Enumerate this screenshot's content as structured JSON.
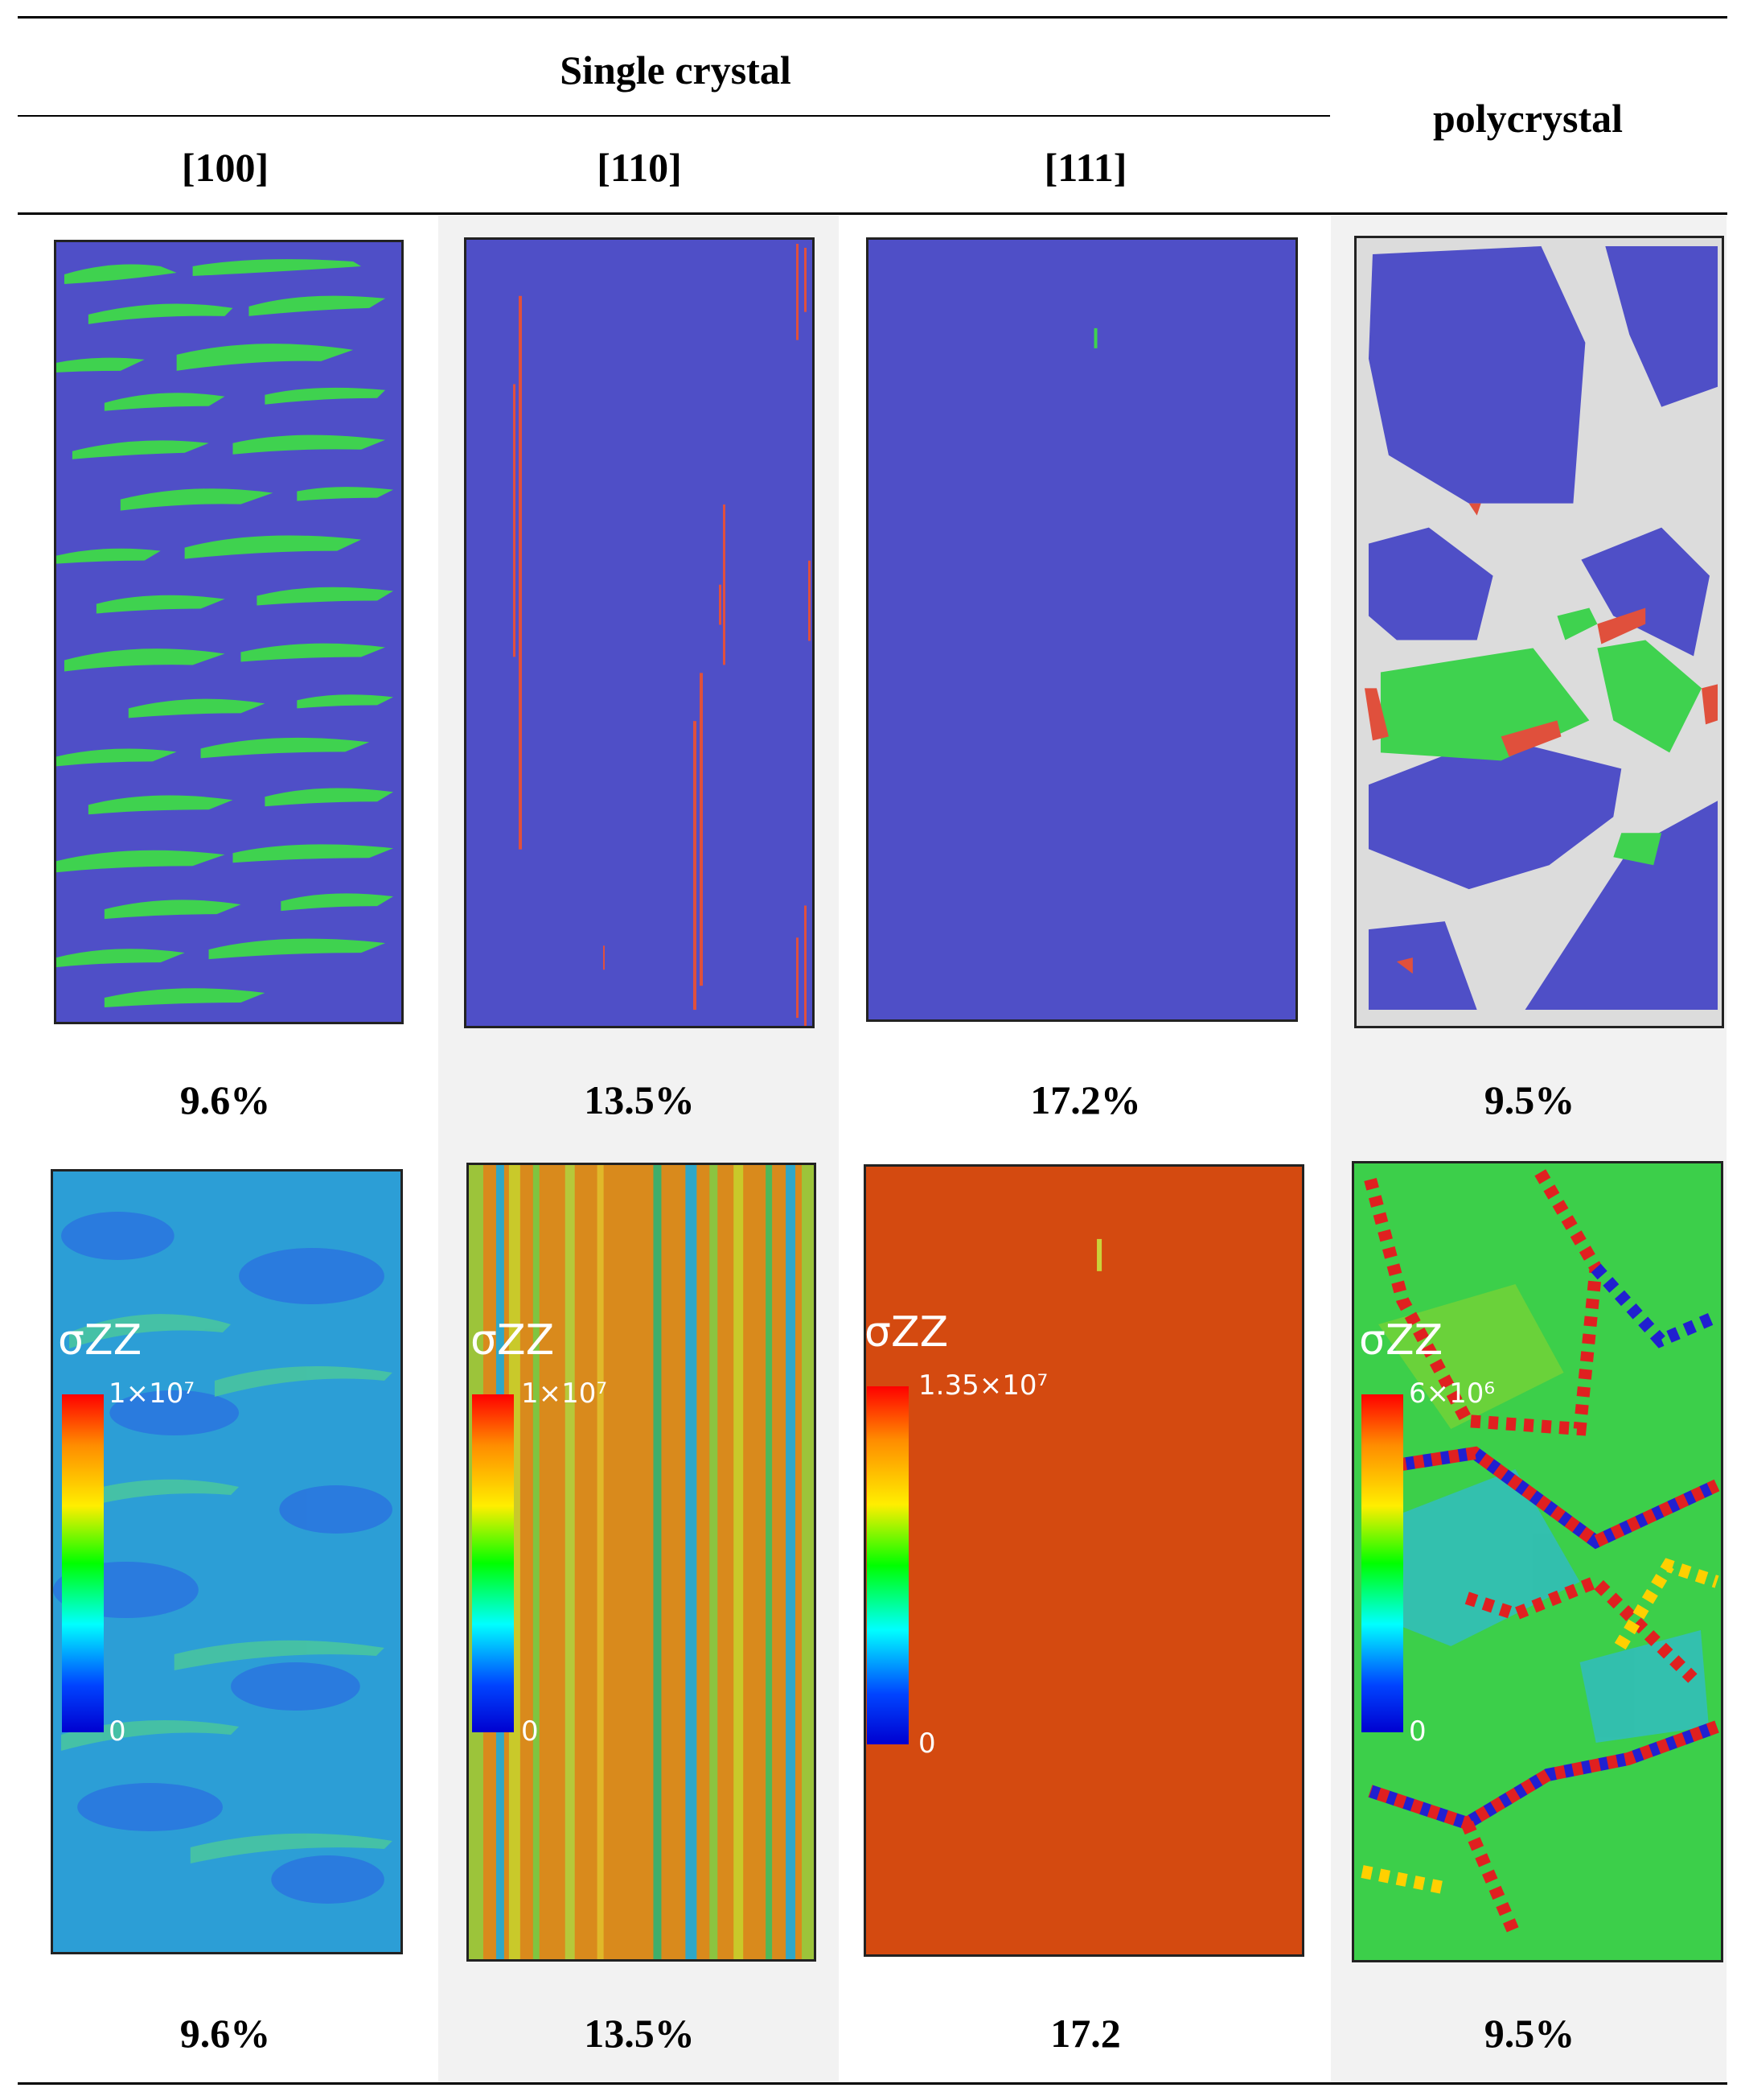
{
  "header": {
    "group_label": "Single crystal",
    "columns": [
      "[100]",
      "[110]",
      "[111]"
    ],
    "poly_label": "polycrystal"
  },
  "row1": {
    "description": "structure",
    "captions": [
      "9.6%",
      "13.5%",
      "17.2%",
      "9.5%"
    ]
  },
  "row2": {
    "description": "stress",
    "colorbar_title": "σZZ",
    "colorbar_min": "0",
    "colorbar_max": [
      "1×10⁷",
      "1×10⁷",
      "1.35×10⁷",
      "6×10⁶"
    ],
    "captions": [
      "9.6%",
      "13.5%",
      "17.2",
      "9.5%"
    ]
  },
  "colors": {
    "matrix_blue": "#4f4fc7",
    "fcc_green": "#3fd24f",
    "hcp_red": "#e0503c",
    "other_white": "#dcdcdc",
    "stress_orange": "#d44a10",
    "panel_bg": "#f2f2f2"
  }
}
